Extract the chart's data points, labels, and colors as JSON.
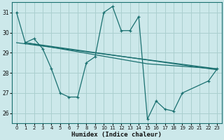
{
  "bg_color": "#cce8ea",
  "grid_color": "#aacfcf",
  "line_color": "#1a7070",
  "xlim": [
    -0.5,
    23.5
  ],
  "ylim": [
    25.5,
    31.5
  ],
  "yticks": [
    26,
    27,
    28,
    29,
    30,
    31
  ],
  "xticks": [
    0,
    1,
    2,
    3,
    4,
    5,
    6,
    7,
    8,
    9,
    10,
    11,
    12,
    13,
    14,
    15,
    16,
    17,
    18,
    19,
    20,
    21,
    22,
    23
  ],
  "xlabel": "Humidex (Indice chaleur)",
  "line1_x": [
    0,
    1,
    2,
    3,
    4,
    5,
    6,
    7,
    8,
    9,
    10,
    11,
    12,
    13,
    14,
    15,
    16,
    17,
    18,
    19,
    22,
    23
  ],
  "line1_y": [
    31.0,
    29.5,
    29.7,
    29.2,
    28.2,
    27.0,
    26.8,
    26.8,
    28.5,
    28.8,
    31.0,
    31.3,
    30.1,
    30.1,
    30.8,
    25.7,
    26.6,
    26.2,
    26.1,
    27.0,
    27.6,
    28.2
  ],
  "trend1_x": [
    0,
    23
  ],
  "trend1_y": [
    29.5,
    28.2
  ],
  "trend2_x": [
    1,
    23
  ],
  "trend2_y": [
    29.5,
    28.15
  ],
  "trend3_x": [
    1,
    15,
    23
  ],
  "trend3_y": [
    29.5,
    28.45,
    28.2
  ]
}
